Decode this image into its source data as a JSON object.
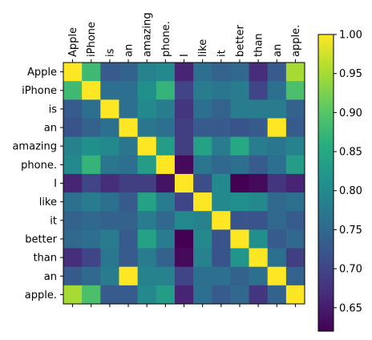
{
  "chart_data": {
    "type": "heatmap",
    "title": "",
    "xlabel": "",
    "ylabel": "",
    "x_labels": [
      "Apple",
      "iPhone",
      "is",
      "an",
      "amazing",
      "phone.",
      "I",
      "like",
      "it",
      "better",
      "than",
      "an",
      "apple."
    ],
    "y_labels": [
      "Apple",
      "iPhone",
      "is",
      "an",
      "amazing",
      "phone.",
      "I",
      "like",
      "it",
      "better",
      "than",
      "an",
      "apple."
    ],
    "x_tick_position": "top",
    "colormap": "viridis",
    "vmin": 0.62,
    "vmax": 1.0,
    "colorbar": {
      "ticks": [
        0.65,
        0.7,
        0.75,
        0.8,
        0.85,
        0.9,
        0.95,
        1.0
      ],
      "tick_labels": [
        "0.65",
        "0.70",
        "0.75",
        "0.80",
        "0.85",
        "0.90",
        "0.95",
        "1.00"
      ]
    },
    "values": [
      [
        1.0,
        0.88,
        0.73,
        0.74,
        0.79,
        0.8,
        0.66,
        0.76,
        0.74,
        0.75,
        0.67,
        0.73,
        0.95
      ],
      [
        0.88,
        1.0,
        0.76,
        0.76,
        0.81,
        0.87,
        0.7,
        0.78,
        0.77,
        0.78,
        0.7,
        0.76,
        0.89
      ],
      [
        0.73,
        0.76,
        1.0,
        0.76,
        0.8,
        0.78,
        0.68,
        0.76,
        0.74,
        0.78,
        0.78,
        0.78,
        0.74
      ],
      [
        0.72,
        0.74,
        0.76,
        1.0,
        0.77,
        0.76,
        0.69,
        0.73,
        0.73,
        0.72,
        0.73,
        1.0,
        0.73
      ],
      [
        0.79,
        0.81,
        0.8,
        0.77,
        1.0,
        0.83,
        0.69,
        0.84,
        0.78,
        0.85,
        0.78,
        0.77,
        0.79
      ],
      [
        0.8,
        0.87,
        0.77,
        0.76,
        0.83,
        1.0,
        0.63,
        0.77,
        0.75,
        0.76,
        0.73,
        0.76,
        0.83
      ],
      [
        0.66,
        0.7,
        0.67,
        0.69,
        0.69,
        0.64,
        1.0,
        0.71,
        0.8,
        0.62,
        0.63,
        0.68,
        0.66
      ],
      [
        0.76,
        0.78,
        0.76,
        0.73,
        0.84,
        0.78,
        0.7,
        1.0,
        0.8,
        0.81,
        0.8,
        0.75,
        0.76
      ],
      [
        0.74,
        0.75,
        0.74,
        0.74,
        0.78,
        0.75,
        0.8,
        0.79,
        1.0,
        0.72,
        0.72,
        0.75,
        0.73
      ],
      [
        0.75,
        0.76,
        0.78,
        0.73,
        0.84,
        0.78,
        0.62,
        0.8,
        0.72,
        1.0,
        0.81,
        0.73,
        0.75
      ],
      [
        0.67,
        0.7,
        0.77,
        0.73,
        0.78,
        0.74,
        0.63,
        0.79,
        0.72,
        0.82,
        1.0,
        0.76,
        0.69
      ],
      [
        0.73,
        0.75,
        0.78,
        1.0,
        0.79,
        0.79,
        0.7,
        0.76,
        0.76,
        0.74,
        0.76,
        1.0,
        0.74
      ],
      [
        0.95,
        0.89,
        0.73,
        0.73,
        0.8,
        0.83,
        0.66,
        0.76,
        0.73,
        0.75,
        0.68,
        0.74,
        1.0
      ]
    ]
  }
}
